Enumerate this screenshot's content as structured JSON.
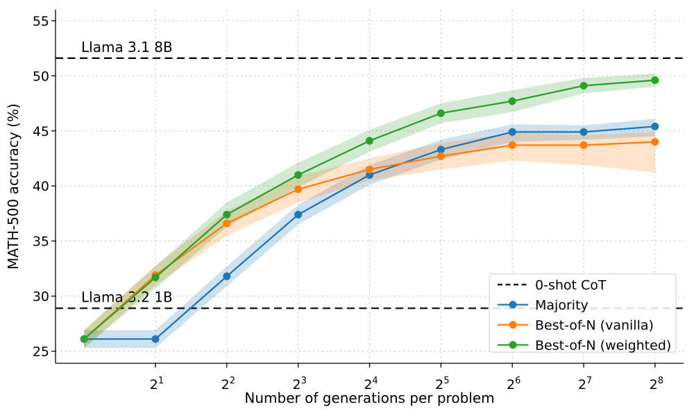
{
  "chart_data": {
    "type": "line",
    "title": "",
    "xlabel": "Number of generations per problem",
    "ylabel": "MATH-500 accuracy (%)",
    "xscale": "log2",
    "x": [
      1,
      2,
      4,
      8,
      16,
      32,
      64,
      128,
      256
    ],
    "x_tick_labels": [
      "2^1",
      "2^2",
      "2^3",
      "2^4",
      "2^5",
      "2^6",
      "2^7",
      "2^8"
    ],
    "y_ticks": [
      25,
      30,
      35,
      40,
      45,
      50,
      55
    ],
    "ylim": [
      23.9,
      56.0
    ],
    "grid": true,
    "grid_color": "#c9c9c9",
    "legend_position": "lower right",
    "series": [
      {
        "name": "Majority",
        "color": "#1f77b4",
        "linestyle": "solid",
        "marker": "circle",
        "values": [
          26.1,
          26.1,
          31.8,
          37.4,
          41.0,
          43.3,
          44.9,
          44.9,
          45.4
        ],
        "band_upper": [
          26.9,
          26.9,
          32.7,
          38.3,
          41.9,
          44.2,
          45.6,
          45.5,
          46.1
        ],
        "band_lower": [
          25.3,
          25.3,
          30.9,
          36.5,
          40.1,
          42.4,
          44.0,
          44.2,
          44.5
        ]
      },
      {
        "name": "Best-of-N (vanilla)",
        "color": "#ff7f0e",
        "linestyle": "solid",
        "marker": "circle",
        "values": [
          26.1,
          31.9,
          36.6,
          39.7,
          41.5,
          42.7,
          43.7,
          43.7,
          44.0
        ],
        "band_upper": [
          26.9,
          32.8,
          37.7,
          40.9,
          42.5,
          43.9,
          44.8,
          44.6,
          44.9
        ],
        "band_lower": [
          25.3,
          31.0,
          35.5,
          38.5,
          40.5,
          41.5,
          42.3,
          41.9,
          41.2
        ]
      },
      {
        "name": "Best-of-N (weighted)",
        "color": "#2ca02c",
        "linestyle": "solid",
        "marker": "circle",
        "values": [
          26.1,
          31.7,
          37.4,
          41.0,
          44.1,
          46.6,
          47.7,
          49.1,
          49.6
        ],
        "band_upper": [
          26.9,
          32.7,
          38.5,
          42.1,
          45.1,
          47.5,
          48.7,
          49.8,
          50.2
        ],
        "band_lower": [
          25.3,
          30.7,
          36.3,
          39.9,
          43.1,
          45.7,
          46.7,
          48.4,
          49.0
        ]
      }
    ],
    "reference_lines": [
      {
        "label": "Llama 3.1 8B",
        "value": 51.6,
        "color": "#000000",
        "linestyle": "dashed"
      },
      {
        "label": "Llama 3.2 1B",
        "value": 28.9,
        "color": "#000000",
        "linestyle": "dashed"
      }
    ],
    "legend": [
      {
        "label": "0-shot CoT",
        "color": "#000000",
        "linestyle": "dashed",
        "marker": "none"
      },
      {
        "label": "Majority",
        "color": "#1f77b4",
        "linestyle": "solid",
        "marker": "circle"
      },
      {
        "label": "Best-of-N (vanilla)",
        "color": "#ff7f0e",
        "linestyle": "solid",
        "marker": "circle"
      },
      {
        "label": "Best-of-N (weighted)",
        "color": "#2ca02c",
        "linestyle": "solid",
        "marker": "circle"
      }
    ]
  }
}
